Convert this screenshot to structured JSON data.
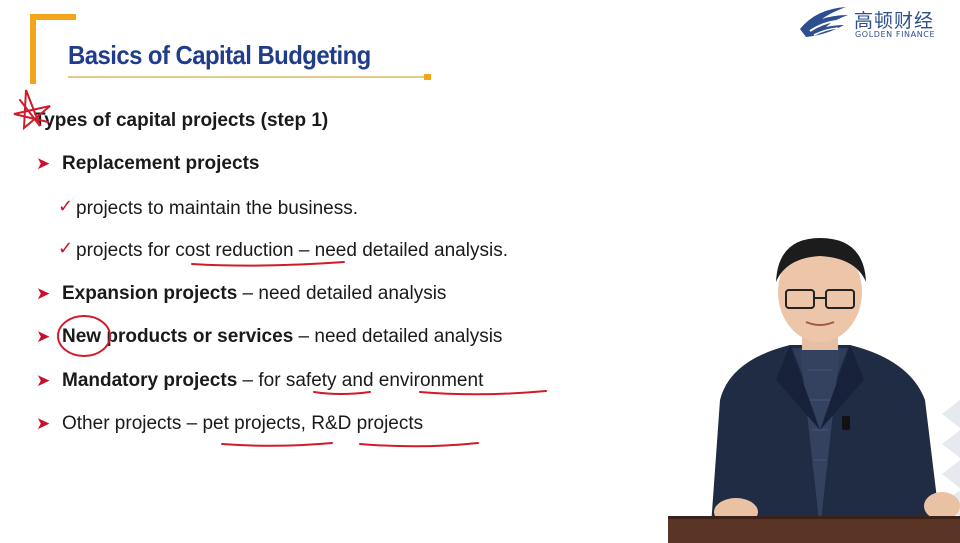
{
  "slide": {
    "title": "Basics of Capital Budgeting",
    "heading": "Types of capital projects (step 1)",
    "items": [
      {
        "bold": "Replacement projects",
        "rest": ""
      },
      {
        "bold": "Expansion projects",
        "rest": " – need detailed analysis"
      },
      {
        "bold": "New products or services",
        "rest": " – need detailed analysis"
      },
      {
        "bold": "Mandatory projects",
        "rest": " – for safety and environment"
      },
      {
        "bold": "",
        "rest": "Other projects – pet projects, R&D projects"
      }
    ],
    "subitems": [
      "projects to maintain the business.",
      "projects for cost reduction – need detailed analysis."
    ]
  },
  "logo": {
    "name_cn": "高顿财经",
    "name_en": "GOLDEN FINANCE"
  },
  "colors": {
    "title": "#1f3d8a",
    "accent": "#f2a51a",
    "bullet": "#c8102e",
    "annotation": "#d11a2a"
  }
}
